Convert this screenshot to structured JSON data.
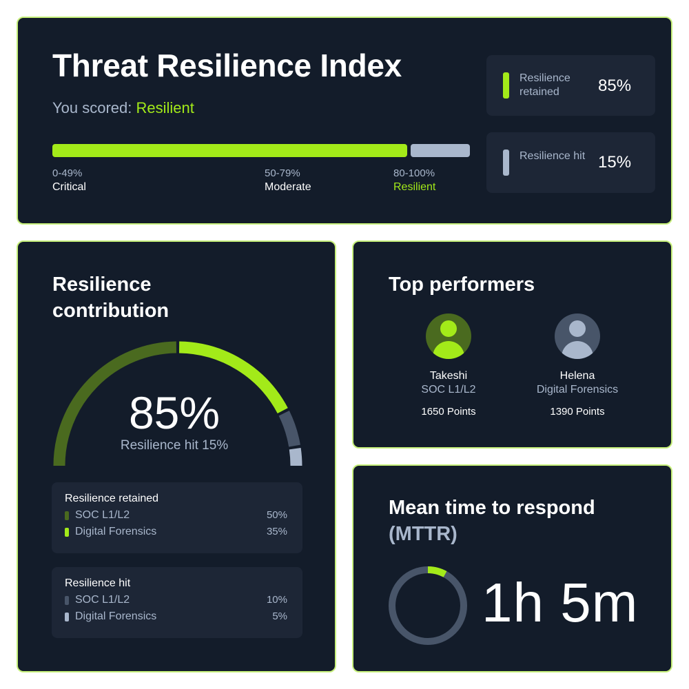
{
  "colors": {
    "background": "#131c2a",
    "border": "#c6ef7a",
    "accent_green": "#a3ea19",
    "dark_green": "#4a6a1f",
    "muted_blue": "#a9b7cc",
    "slate": "#485569",
    "panel": "#1d2636"
  },
  "index": {
    "title": "Threat Resilience Index",
    "score_prefix": "You scored: ",
    "score_value": "Resilient",
    "score_fraction": 0.85,
    "ranges": [
      {
        "range": "0-49%",
        "label": "Critical"
      },
      {
        "range": "50-79%",
        "label": "Moderate"
      },
      {
        "range": "80-100%",
        "label": "Resilient"
      }
    ],
    "stats": [
      {
        "label": "Resilience retained",
        "value": "85%",
        "color": "#a3ea19"
      },
      {
        "label": "Resilience hit",
        "value": "15%",
        "color": "#a9b7cc"
      }
    ]
  },
  "contribution": {
    "title_line1": "Resilience",
    "title_line2": "contribution",
    "center_value": "85%",
    "center_sub": "Resilience hit 15%",
    "segments": [
      {
        "name": "SOC L1/L2 retained",
        "percent": 50,
        "color": "#4a6a1f"
      },
      {
        "name": "Digital Forensics retained",
        "percent": 35,
        "color": "#a3ea19"
      },
      {
        "name": "SOC L1/L2 hit",
        "percent": 10,
        "color": "#485569"
      },
      {
        "name": "Digital Forensics hit",
        "percent": 5,
        "color": "#a9b7cc"
      }
    ],
    "retained": {
      "title": "Resilience retained",
      "rows": [
        {
          "name": "SOC L1/L2",
          "value": "50%",
          "color": "#4a6a1f"
        },
        {
          "name": "Digital Forensics",
          "value": "35%",
          "color": "#a3ea19"
        }
      ]
    },
    "hit": {
      "title": "Resilience hit",
      "rows": [
        {
          "name": "SOC L1/L2",
          "value": "10%",
          "color": "#485569"
        },
        {
          "name": "Digital Forensics",
          "value": "5%",
          "color": "#a9b7cc"
        }
      ]
    }
  },
  "performers": {
    "title": "Top performers",
    "people": [
      {
        "name": "Takeshi",
        "role": "SOC L1/L2",
        "points": "1650 Points",
        "avatar_bg": "#4a6a1f",
        "avatar_fg": "#a3ea19",
        "avatar_icon": "user-avatar-icon"
      },
      {
        "name": "Helena",
        "role": "Digital Forensics",
        "points": "1390 Points",
        "avatar_bg": "#485569",
        "avatar_fg": "#a9b7cc",
        "avatar_icon": "user-avatar-icon"
      }
    ]
  },
  "mttr": {
    "title_line1": "Mean time to respond",
    "title_abbr": "(MTTR)",
    "value": "1h 5m",
    "ring_fraction": 0.08
  }
}
